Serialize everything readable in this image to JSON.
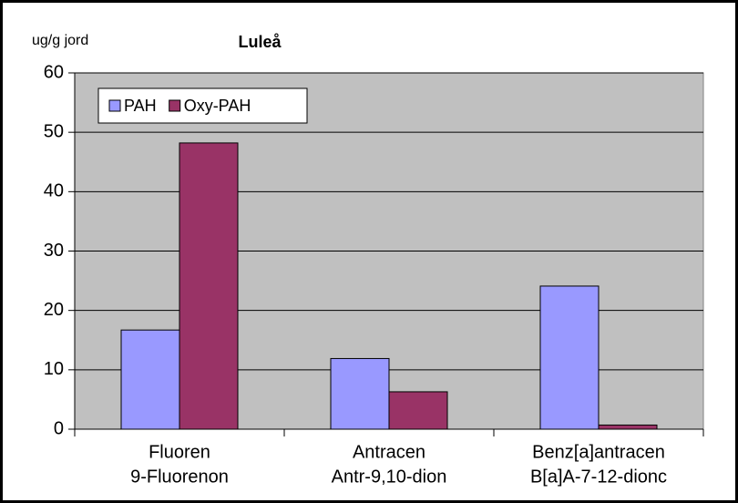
{
  "chart_data": {
    "type": "bar",
    "title": "Luleå",
    "y_axis_label": "ug/g jord",
    "categories": [
      [
        "Fluoren",
        "9-Fluorenon"
      ],
      [
        "Antracen",
        "Antr-9,10-dion"
      ],
      [
        "Benz[a]antracen",
        "B[a]A-7-12-dionc"
      ]
    ],
    "series": [
      {
        "name": "PAH",
        "color": "#9999ff",
        "values": [
          16.7,
          11.9,
          24.1
        ]
      },
      {
        "name": "Oxy-PAH",
        "color": "#993366",
        "values": [
          48.2,
          6.3,
          0.7
        ]
      }
    ],
    "ylim": [
      0,
      60
    ],
    "yticks": [
      0,
      10,
      20,
      30,
      40,
      50,
      60
    ],
    "grid": true,
    "legend": "top-left"
  }
}
